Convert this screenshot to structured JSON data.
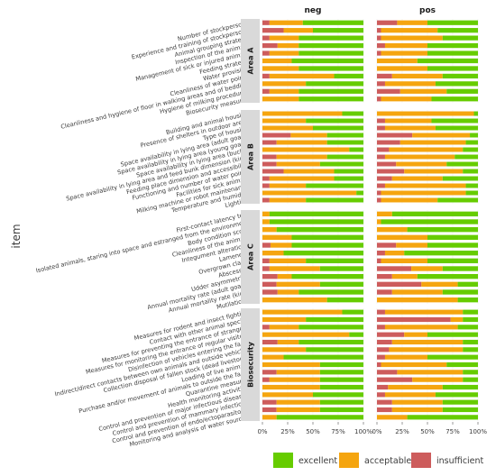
{
  "chart_data": {
    "type": "bar",
    "orientation": "horizontal",
    "stacked": true,
    "ylabel": "item",
    "xlabel": "",
    "xlim": [
      0,
      100
    ],
    "x_ticks": [
      "0%",
      "25%",
      "50%",
      "75%",
      "100%"
    ],
    "columns": [
      "neg",
      "pos"
    ],
    "legend": {
      "placement": "bottom",
      "entries": [
        "excellent",
        "acceptable",
        "insufficient"
      ]
    },
    "colors": {
      "excellent": "#66cc00",
      "acceptable": "#f5a50f",
      "insufficient": "#cd5c5c"
    },
    "groups": [
      {
        "name": "Area A",
        "items": [
          {
            "label": "Number of stockpersons",
            "neg": [
              60,
              33,
              7
            ],
            "pos": [
              50,
              30,
              20
            ]
          },
          {
            "label": "Experience and training of stockpersons",
            "neg": [
              50,
              29,
              21
            ],
            "pos": [
              40,
              56,
              4
            ]
          },
          {
            "label": "Animal grouping strategy",
            "neg": [
              64,
              29,
              7
            ],
            "pos": [
              35,
              61,
              4
            ]
          },
          {
            "label": "Inspection of the animals",
            "neg": [
              64,
              21,
              15
            ],
            "pos": [
              50,
              42,
              8
            ]
          },
          {
            "label": "Management of sick or injured animals",
            "neg": [
              64,
              29,
              7
            ],
            "pos": [
              50,
              46,
              4
            ]
          },
          {
            "label": "Feeding strategy",
            "neg": [
              71,
              29,
              0
            ],
            "pos": [
              60,
              40,
              0
            ]
          },
          {
            "label": "Water provision",
            "neg": [
              64,
              36,
              0
            ],
            "pos": [
              50,
              50,
              0
            ]
          },
          {
            "label": "Cleanliness of water points",
            "neg": [
              29,
              64,
              7
            ],
            "pos": [
              35,
              50,
              15
            ]
          },
          {
            "label": "Cleanliness and hygiene of floor in walking areas and of bedding",
            "neg": [
              57,
              43,
              0
            ],
            "pos": [
              42,
              50,
              8
            ]
          },
          {
            "label": "Hygiene of milking procedures",
            "neg": [
              64,
              29,
              7
            ],
            "pos": [
              31,
              46,
              23
            ]
          },
          {
            "label": "Biosecurity measures",
            "neg": [
              64,
              36,
              0
            ],
            "pos": [
              46,
              50,
              4
            ]
          }
        ]
      },
      {
        "name": "Area B",
        "items": [
          {
            "label": "Building and animal housing",
            "neg": [
              21,
              79,
              0
            ],
            "pos": [
              4,
              96,
              0
            ]
          },
          {
            "label": "Presence of shelters in outdoor areas",
            "neg": [
              57,
              43,
              0
            ],
            "pos": [
              46,
              46,
              8
            ]
          },
          {
            "label": "Type of housing",
            "neg": [
              50,
              50,
              0
            ],
            "pos": [
              42,
              50,
              8
            ]
          },
          {
            "label": "Space availability in lying area (adult goats)",
            "neg": [
              36,
              36,
              28
            ],
            "pos": [
              8,
              57,
              35
            ]
          },
          {
            "label": "Space availability in lying area (young goats)",
            "neg": [
              36,
              50,
              14
            ],
            "pos": [
              12,
              65,
              23
            ]
          },
          {
            "label": "Space availability in lying area (bucks)",
            "neg": [
              14,
              86,
              0
            ],
            "pos": [
              15,
              73,
              12
            ]
          },
          {
            "label": "Space availability in lying area and feed bunk dimension (kids)",
            "neg": [
              36,
              50,
              14
            ],
            "pos": [
              23,
              69,
              8
            ]
          },
          {
            "label": "Feeding place dimension and accessibility",
            "neg": [
              43,
              43,
              14
            ],
            "pos": [
              31,
              50,
              19
            ]
          },
          {
            "label": "Functioning and number of water points",
            "neg": [
              29,
              50,
              21
            ],
            "pos": [
              15,
              58,
              27
            ]
          },
          {
            "label": "Facilities for sick animals",
            "neg": [
              29,
              64,
              7
            ],
            "pos": [
              35,
              50,
              15
            ]
          },
          {
            "label": "Milking machine or robot maintenance",
            "neg": [
              57,
              36,
              7
            ],
            "pos": [
              12,
              80,
              8
            ]
          },
          {
            "label": "Temperature and humidity",
            "neg": [
              7,
              93,
              0
            ],
            "pos": [
              12,
              84,
              4
            ]
          },
          {
            "label": "Lighting",
            "neg": [
              57,
              36,
              7
            ],
            "pos": [
              40,
              56,
              4
            ]
          }
        ]
      },
      {
        "name": "Area C",
        "items": [
          {
            "label": "First-contact latency test",
            "neg": [
              93,
              7,
              0
            ],
            "pos": [
              85,
              15,
              0
            ]
          },
          {
            "label": "Isolated animals, staring into space and estranged from the environment",
            "neg": [
              93,
              7,
              0
            ],
            "pos": [
              96,
              4,
              0
            ]
          },
          {
            "label": "Body condition score",
            "neg": [
              86,
              14,
              0
            ],
            "pos": [
              70,
              30,
              0
            ]
          },
          {
            "label": "Cleanliness of the animals",
            "neg": [
              71,
              29,
              0
            ],
            "pos": [
              50,
              50,
              0
            ]
          },
          {
            "label": "Integument alterations",
            "neg": [
              71,
              21,
              8
            ],
            "pos": [
              50,
              31,
              19
            ]
          },
          {
            "label": "Lameness",
            "neg": [
              79,
              21,
              0
            ],
            "pos": [
              73,
              19,
              8
            ]
          },
          {
            "label": "Overgrown claws",
            "neg": [
              57,
              36,
              7
            ],
            "pos": [
              50,
              46,
              4
            ]
          },
          {
            "label": "Abscesses",
            "neg": [
              43,
              50,
              7
            ],
            "pos": [
              35,
              31,
              34
            ]
          },
          {
            "label": "Udder asymmetries",
            "neg": [
              71,
              14,
              15
            ],
            "pos": [
              60,
              25,
              15
            ]
          },
          {
            "label": "Annual mortality rate (adult goats)",
            "neg": [
              43,
              43,
              14
            ],
            "pos": [
              20,
              36,
              44
            ]
          },
          {
            "label": "Annual mortality rate (kids)",
            "neg": [
              64,
              21,
              15
            ],
            "pos": [
              35,
              50,
              15
            ]
          },
          {
            "label": "Mutilations",
            "neg": [
              36,
              64,
              0
            ],
            "pos": [
              20,
              80,
              0
            ]
          }
        ]
      },
      {
        "name": "Biosecurity",
        "items": [
          {
            "label": "Measures for rodent and insect fighting",
            "neg": [
              21,
              79,
              0
            ],
            "pos": [
              15,
              77,
              8
            ]
          },
          {
            "label": "Contact with other animal species",
            "neg": [
              57,
              43,
              0
            ],
            "pos": [
              15,
              12,
              73
            ]
          },
          {
            "label": "Measures for preventing the entrance of strangers",
            "neg": [
              64,
              29,
              7
            ],
            "pos": [
              20,
              72,
              8
            ]
          },
          {
            "label": "Measures for monitoring the entrance of regular visitors",
            "neg": [
              14,
              86,
              0
            ],
            "pos": [
              50,
              23,
              27
            ]
          },
          {
            "label": "Disinfection of vehicles entering the farm",
            "neg": [
              64,
              21,
              15
            ],
            "pos": [
              15,
              70,
              15
            ]
          },
          {
            "label": "Indirect/direct contacts between own animals and outside vehicles",
            "neg": [
              57,
              43,
              0
            ],
            "pos": [
              15,
              73,
              12
            ]
          },
          {
            "label": "Collection disposal of fallen stock (dead livestock)",
            "neg": [
              79,
              21,
              0
            ],
            "pos": [
              50,
              42,
              8
            ]
          },
          {
            "label": "Loading of live animals",
            "neg": [
              43,
              57,
              0
            ],
            "pos": [
              31,
              65,
              4
            ]
          },
          {
            "label": "Purchase and/or movement of animals to outside the farm",
            "neg": [
              43,
              43,
              14
            ],
            "pos": [
              15,
              65,
              20
            ]
          },
          {
            "label": "Quarantine measures",
            "neg": [
              43,
              50,
              7
            ],
            "pos": [
              15,
              50,
              35
            ]
          },
          {
            "label": "Health monitoring activities",
            "neg": [
              43,
              57,
              0
            ],
            "pos": [
              35,
              54,
              11
            ]
          },
          {
            "label": "Control and prevention of major infectious diseases",
            "neg": [
              50,
              50,
              0
            ],
            "pos": [
              42,
              50,
              8
            ]
          },
          {
            "label": "Control and prevention of mammary infections",
            "neg": [
              43,
              43,
              14
            ],
            "pos": [
              35,
              50,
              15
            ]
          },
          {
            "label": "Control and prevention of endo/ectoparasitosis",
            "neg": [
              43,
              43,
              14
            ],
            "pos": [
              35,
              50,
              15
            ]
          },
          {
            "label": "Monitoring and analysis of water sources",
            "neg": [
              86,
              14,
              0
            ],
            "pos": [
              70,
              30,
              0
            ]
          }
        ]
      }
    ]
  }
}
